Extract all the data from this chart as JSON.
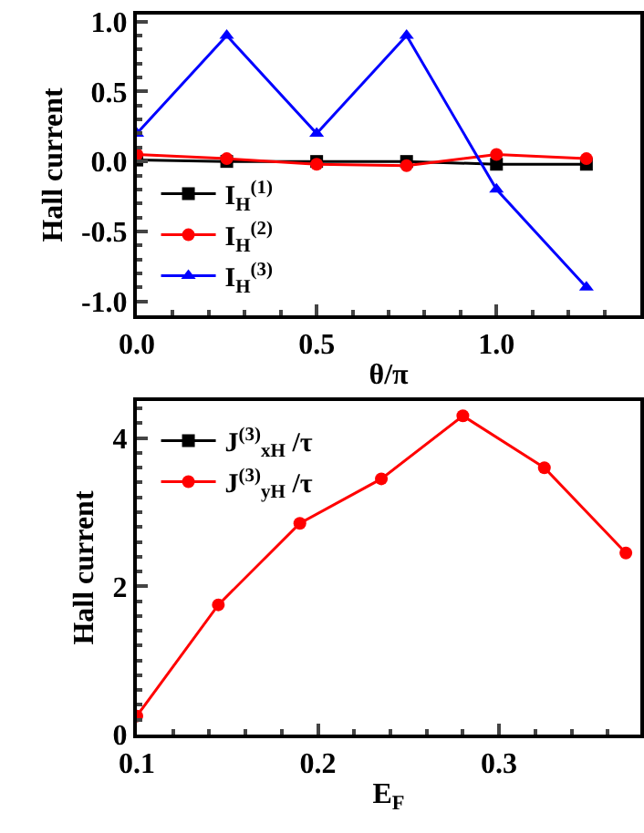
{
  "chart_data": [
    {
      "type": "line",
      "xlabel": "θ/π",
      "ylabel": "Hall current",
      "x": [
        0,
        0.25,
        0.5,
        0.75,
        1.0,
        1.25
      ],
      "xlim": [
        0,
        1.4
      ],
      "ylim": [
        -1.1,
        1.05
      ],
      "xticks": [
        {
          "value": 0,
          "label": "0.0"
        },
        {
          "value": 0.5,
          "label": "0.5"
        },
        {
          "value": 1.0,
          "label": "1.0"
        }
      ],
      "yticks": [
        {
          "value": -1.0,
          "label": "-1.0"
        },
        {
          "value": -0.5,
          "label": "-0.5"
        },
        {
          "value": 0,
          "label": "0.0"
        },
        {
          "value": 0.5,
          "label": "0.5"
        },
        {
          "value": 1.0,
          "label": "1.0"
        }
      ],
      "legend": "bottom left",
      "series": [
        {
          "name": "I$_{H}$$^{(1)}$",
          "color": "#000000",
          "marker": "square",
          "values": [
            0.01,
            0.0,
            0.0,
            0.0,
            -0.02,
            -0.02
          ]
        },
        {
          "name": "I$_{H}$$^{(2)}$",
          "color": "#ff0000",
          "marker": "circle",
          "values": [
            0.05,
            0.02,
            -0.02,
            -0.03,
            0.05,
            0.02
          ]
        },
        {
          "name": "I$_{H}$$^{(3)}$",
          "color": "#0000ff",
          "marker": "triangle",
          "values": [
            0.2,
            0.9,
            0.2,
            0.9,
            -0.2,
            -0.9
          ]
        }
      ]
    },
    {
      "type": "line",
      "xlabel": "E$_{F}$",
      "ylabel": "Hall current",
      "x": [
        0.1,
        0.145,
        0.19,
        0.235,
        0.28,
        0.325,
        0.37
      ],
      "xlim": [
        0.1,
        0.378
      ],
      "ylim": [
        0,
        4.5
      ],
      "xticks": [
        0.1,
        0.2,
        0.3
      ],
      "yticks": [
        0,
        2,
        4
      ],
      "legend": "top left",
      "series": [
        {
          "name": "J$^{(3)}$$_{xH}$ /τ",
          "color": "#000000",
          "marker": "square",
          "values": [
            null,
            null,
            null,
            null,
            null,
            null,
            null
          ]
        },
        {
          "name": "J$^{(3)}$$_{yH}$ /τ",
          "color": "#ff0000",
          "marker": "circle",
          "values": [
            0.25,
            1.75,
            2.85,
            3.45,
            4.3,
            3.6,
            2.45
          ]
        }
      ]
    }
  ]
}
